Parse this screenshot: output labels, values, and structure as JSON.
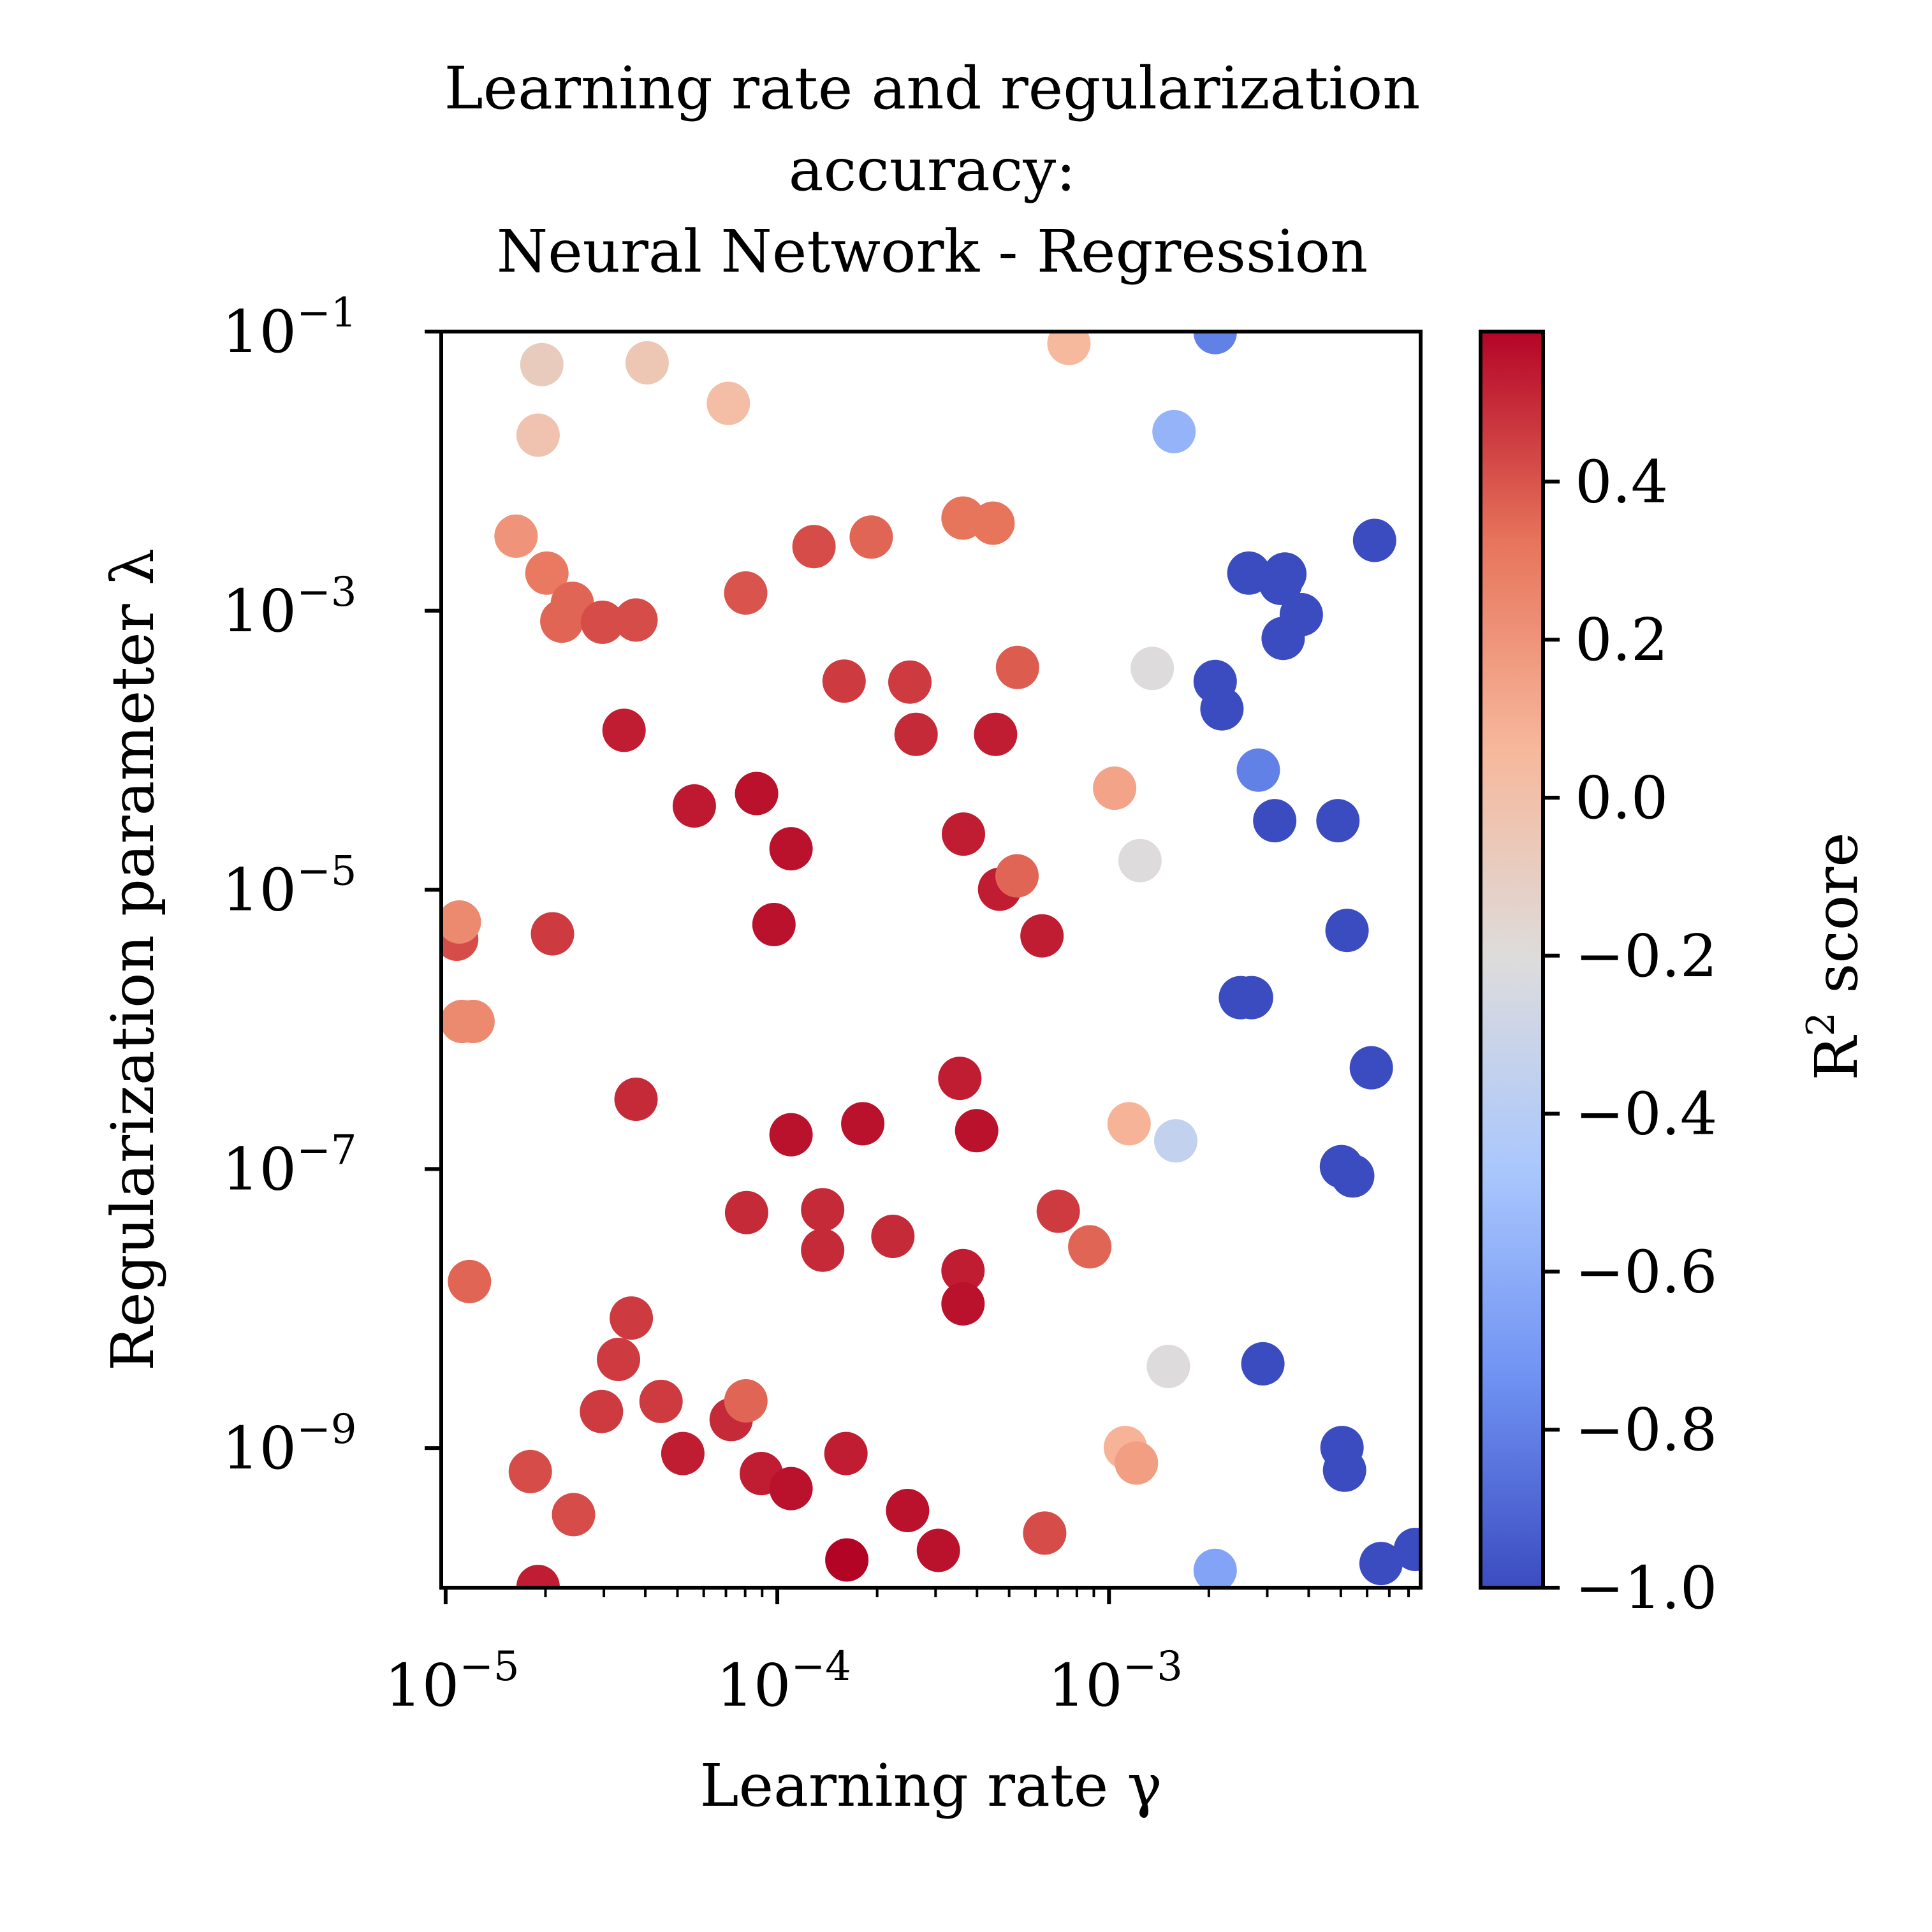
{
  "chart_data": {
    "type": "scatter",
    "title": [
      "Learning rate and regularization",
      "accuracy:",
      "Neural Network - Regression"
    ],
    "xlabel": "Learning rate γ",
    "ylabel": "Regularization parameter λ",
    "xscale": "log",
    "yscale": "log",
    "xlim": [
      9.7e-06,
      0.0087
    ],
    "ylim": [
      1e-10,
      0.1
    ],
    "x_ticks": [
      {
        "value": 1e-05,
        "base": "10",
        "exp": "−5"
      },
      {
        "value": 0.0001,
        "base": "10",
        "exp": "−4"
      },
      {
        "value": 0.001,
        "base": "10",
        "exp": "−3"
      }
    ],
    "y_ticks": [
      {
        "value": 0.1,
        "base": "10",
        "exp": "−1"
      },
      {
        "value": 0.001,
        "base": "10",
        "exp": "−3"
      },
      {
        "value": 1e-05,
        "base": "10",
        "exp": "−5"
      },
      {
        "value": 1e-07,
        "base": "10",
        "exp": "−7"
      },
      {
        "value": 1e-09,
        "base": "10",
        "exp": "−9"
      }
    ],
    "colorbar": {
      "label": "R² score",
      "label_base": "R",
      "label_sup": "2",
      "label_rest": " score",
      "colormap": "coolwarm",
      "range": [
        -1.0,
        0.59
      ],
      "ticks": [
        {
          "value": 0.4,
          "label": "0.4"
        },
        {
          "value": 0.2,
          "label": "0.2"
        },
        {
          "value": 0.0,
          "label": "0.0"
        },
        {
          "value": -0.2,
          "label": "−0.2"
        },
        {
          "value": -0.4,
          "label": "−0.4"
        },
        {
          "value": -0.6,
          "label": "−0.6"
        },
        {
          "value": -0.8,
          "label": "−0.8"
        },
        {
          "value": -1.0,
          "label": "−1.0"
        }
      ],
      "colors": [
        "#3b4cc0",
        "#6f92f3",
        "#aac7fd",
        "#dddcdc",
        "#f7b89c",
        "#e7745b",
        "#b40426"
      ]
    },
    "points": [
      {
        "x": 1.95e-05,
        "y": 0.058,
        "r2": -0.08
      },
      {
        "x": 4.05e-05,
        "y": 0.0597,
        "r2": -0.04
      },
      {
        "x": 1.9e-05,
        "y": 0.0181,
        "r2": -0.02
      },
      {
        "x": 7.12e-05,
        "y": 0.0306,
        "r2": 0.02
      },
      {
        "x": 0.000757,
        "y": 0.0822,
        "r2": 0.05
      },
      {
        "x": 0.00209,
        "y": 0.0982,
        "r2": -0.8
      },
      {
        "x": 0.00157,
        "y": 0.0192,
        "r2": -0.57
      },
      {
        "x": 1.63e-05,
        "y": 0.00342,
        "r2": 0.2
      },
      {
        "x": 2.02e-05,
        "y": 0.00186,
        "r2": 0.3
      },
      {
        "x": 2.24e-05,
        "y": 0.000841,
        "r2": 0.36
      },
      {
        "x": 2.41e-05,
        "y": 0.00113,
        "r2": 0.36
      },
      {
        "x": 2.97e-05,
        "y": 0.000826,
        "r2": 0.42
      },
      {
        "x": 3.75e-05,
        "y": 0.000857,
        "r2": 0.42
      },
      {
        "x": 8.03e-05,
        "y": 0.00134,
        "r2": 0.4
      },
      {
        "x": 0.000129,
        "y": 0.00288,
        "r2": 0.42
      },
      {
        "x": 0.000192,
        "y": 0.00337,
        "r2": 0.36
      },
      {
        "x": 0.000363,
        "y": 0.00461,
        "r2": 0.32
      },
      {
        "x": 0.000447,
        "y": 0.00424,
        "r2": 0.32
      },
      {
        "x": 3.45e-05,
        "y": 0.000139,
        "r2": 0.53
      },
      {
        "x": 0.000159,
        "y": 0.000313,
        "r2": 0.46
      },
      {
        "x": 0.000251,
        "y": 0.000308,
        "r2": 0.46
      },
      {
        "x": 0.00053,
        "y": 0.000392,
        "r2": 0.38
      },
      {
        "x": 0.000262,
        "y": 0.00013,
        "r2": 0.5
      },
      {
        "x": 0.000455,
        "y": 0.00013,
        "r2": 0.53
      },
      {
        "x": 0.00135,
        "y": 0.000386,
        "r2": -0.2
      },
      {
        "x": 0.00209,
        "y": 0.000311,
        "r2": -1.0
      },
      {
        "x": 0.00219,
        "y": 0.000198,
        "r2": -1.0
      },
      {
        "x": 0.00264,
        "y": 0.00186,
        "r2": -1.0
      },
      {
        "x": 0.00329,
        "y": 0.00157,
        "r2": -1.0
      },
      {
        "x": 0.00339,
        "y": 0.00183,
        "r2": -1.0
      },
      {
        "x": 0.0038,
        "y": 0.000937,
        "r2": -1.0
      },
      {
        "x": 0.00335,
        "y": 0.000633,
        "r2": -1.0
      },
      {
        "x": 0.00632,
        "y": 0.00319,
        "r2": -1.0
      },
      {
        "x": 5.62e-05,
        "y": 3.99e-05,
        "r2": 0.54
      },
      {
        "x": 8.66e-05,
        "y": 4.9e-05,
        "r2": 0.56
      },
      {
        "x": 0.00011,
        "y": 1.97e-05,
        "r2": 0.56
      },
      {
        "x": 9.77e-05,
        "y": 5.64e-06,
        "r2": 0.56
      },
      {
        "x": 0.000364,
        "y": 2.51e-05,
        "r2": 0.53
      },
      {
        "x": 0.000468,
        "y": 1.01e-05,
        "r2": 0.53
      },
      {
        "x": 0.000528,
        "y": 1.26e-05,
        "r2": 0.36
      },
      {
        "x": 0.000628,
        "y": 4.68e-06,
        "r2": 0.53
      },
      {
        "x": 0.00104,
        "y": 5.35e-05,
        "r2": 0.14
      },
      {
        "x": 0.00124,
        "y": 1.62e-05,
        "r2": -0.2
      },
      {
        "x": 0.00282,
        "y": 7.21e-05,
        "r2": -0.8
      },
      {
        "x": 0.00316,
        "y": 3.13e-05,
        "r2": -1.0
      },
      {
        "x": 0.0049,
        "y": 3.13e-05,
        "r2": -1.0
      },
      {
        "x": 0.00522,
        "y": 5.12e-06,
        "r2": -1.0
      },
      {
        "x": 1.08e-05,
        "y": 4.43e-06,
        "r2": 0.42
      },
      {
        "x": 1.1e-05,
        "y": 5.88e-06,
        "r2": 0.24
      },
      {
        "x": 2.1e-05,
        "y": 4.84e-06,
        "r2": 0.46
      },
      {
        "x": 1.12e-05,
        "y": 1.14e-06,
        "r2": 0.24
      },
      {
        "x": 1.21e-05,
        "y": 1.14e-06,
        "r2": 0.24
      },
      {
        "x": 0.00249,
        "y": 1.69e-06,
        "r2": -1.0
      },
      {
        "x": 0.00269,
        "y": 1.69e-06,
        "r2": -1.0
      },
      {
        "x": 0.00618,
        "y": 5.31e-07,
        "r2": -1.0
      },
      {
        "x": 3.75e-05,
        "y": 3.16e-07,
        "r2": 0.5
      },
      {
        "x": 0.00011,
        "y": 1.76e-07,
        "r2": 0.56
      },
      {
        "x": 0.000181,
        "y": 2.11e-07,
        "r2": 0.56
      },
      {
        "x": 0.000355,
        "y": 4.46e-07,
        "r2": 0.53
      },
      {
        "x": 0.000399,
        "y": 1.88e-07,
        "r2": 0.56
      },
      {
        "x": 0.00115,
        "y": 2.11e-07,
        "r2": 0.08
      },
      {
        "x": 0.00159,
        "y": 1.59e-07,
        "r2": -0.35
      },
      {
        "x": 0.00502,
        "y": 1.04e-07,
        "r2": -1.0
      },
      {
        "x": 0.00543,
        "y": 8.91e-08,
        "r2": -1.0
      },
      {
        "x": 8.08e-05,
        "y": 4.87e-08,
        "r2": 0.5
      },
      {
        "x": 0.000137,
        "y": 5.11e-08,
        "r2": 0.5
      },
      {
        "x": 0.000137,
        "y": 2.62e-08,
        "r2": 0.5
      },
      {
        "x": 0.000223,
        "y": 3.29e-08,
        "r2": 0.5
      },
      {
        "x": 0.000703,
        "y": 4.98e-08,
        "r2": 0.46
      },
      {
        "x": 0.000875,
        "y": 2.77e-08,
        "r2": 0.36
      },
      {
        "x": 1.18e-05,
        "y": 1.56e-08,
        "r2": 0.36
      },
      {
        "x": 3.63e-05,
        "y": 8.55e-09,
        "r2": 0.46
      },
      {
        "x": 0.000363,
        "y": 1.87e-08,
        "r2": 0.53
      },
      {
        "x": 0.000363,
        "y": 1.08e-08,
        "r2": 0.56
      },
      {
        "x": 3.32e-05,
        "y": 4.32e-09,
        "r2": 0.46
      },
      {
        "x": 2.95e-05,
        "y": 1.83e-09,
        "r2": 0.46
      },
      {
        "x": 4.46e-05,
        "y": 2.16e-09,
        "r2": 0.46
      },
      {
        "x": 7.26e-05,
        "y": 1.6e-09,
        "r2": 0.5
      },
      {
        "x": 8.04e-05,
        "y": 2.18e-09,
        "r2": 0.36
      },
      {
        "x": 5.19e-05,
        "y": 9.15e-10,
        "r2": 0.53
      },
      {
        "x": 8.95e-05,
        "y": 6.57e-10,
        "r2": 0.53
      },
      {
        "x": 0.00011,
        "y": 5.13e-10,
        "r2": 0.56
      },
      {
        "x": 0.000161,
        "y": 9.15e-10,
        "r2": 0.53
      },
      {
        "x": 0.000247,
        "y": 3.57e-10,
        "r2": 0.56
      },
      {
        "x": 0.000306,
        "y": 1.85e-10,
        "r2": 0.56
      },
      {
        "x": 0.000162,
        "y": 1.58e-10,
        "r2": 0.59
      },
      {
        "x": 0.00064,
        "y": 2.46e-10,
        "r2": 0.42
      },
      {
        "x": 1.8e-05,
        "y": 6.79e-10,
        "r2": 0.42
      },
      {
        "x": 2.43e-05,
        "y": 3.34e-10,
        "r2": 0.42
      },
      {
        "x": 1.9e-05,
        "y": 1.02e-10,
        "r2": 0.53
      },
      {
        "x": 0.00112,
        "y": 1.01e-09,
        "r2": 0.08
      },
      {
        "x": 0.00121,
        "y": 7.82e-10,
        "r2": 0.16
      },
      {
        "x": 0.00151,
        "y": 3.85e-09,
        "r2": -0.2
      },
      {
        "x": 0.00291,
        "y": 4.02e-09,
        "r2": -1.0
      },
      {
        "x": 0.00504,
        "y": 1.01e-09,
        "r2": -1.0
      },
      {
        "x": 0.00513,
        "y": 6.94e-10,
        "r2": -1.0
      },
      {
        "x": 0.00209,
        "y": 1.33e-10,
        "r2": -0.65
      },
      {
        "x": 0.00661,
        "y": 1.49e-10,
        "r2": -1.0
      },
      {
        "x": 0.00839,
        "y": 1.88e-10,
        "r2": -1.0
      }
    ]
  }
}
